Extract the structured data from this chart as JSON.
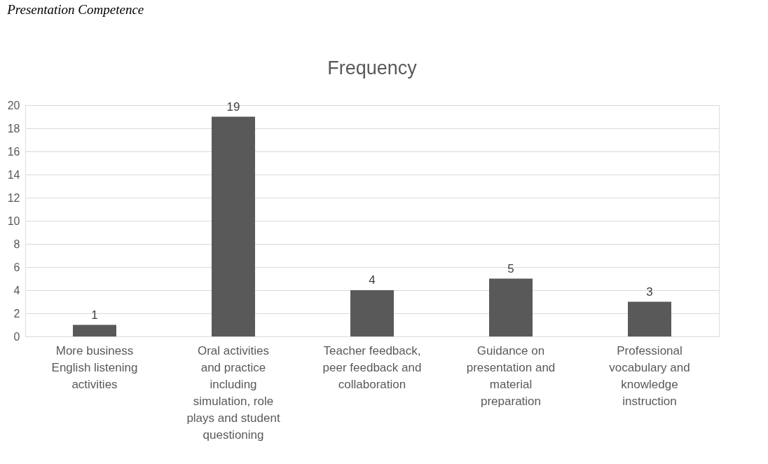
{
  "chart_data": {
    "type": "bar",
    "title": "Frequency",
    "annotations": [
      "Presentation Competence"
    ],
    "categories": [
      "More business English listening activities",
      "Oral activities and practice including simulation, role plays and student questioning",
      "Teacher feedback, peer feedback and collaboration",
      "Guidance on presentation and material preparation",
      "Professional vocabulary and knowledge instruction"
    ],
    "values": [
      1,
      19,
      4,
      5,
      3
    ],
    "color": "#595959",
    "ylim": [
      0,
      20
    ],
    "yticks": [
      0,
      2,
      4,
      6,
      8,
      10,
      12,
      14,
      16,
      18,
      20
    ],
    "grid": "y",
    "data_labels": true
  }
}
